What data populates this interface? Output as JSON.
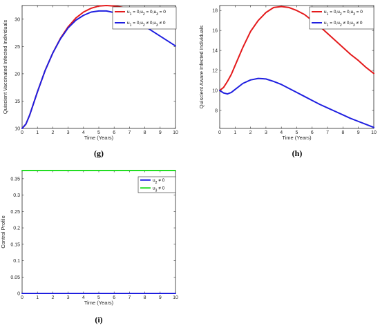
{
  "chart_data": [
    {
      "panel_label": "(g)",
      "type": "line",
      "xlabel": "Time (Years)",
      "ylabel": "Quiscient Vaccinated Infected Individuals",
      "xlim": [
        0,
        10
      ],
      "ylim": [
        10,
        32.5
      ],
      "xticks": [
        0,
        1,
        2,
        3,
        4,
        5,
        6,
        7,
        8,
        9,
        10
      ],
      "yticks": [
        10,
        15,
        20,
        25,
        30
      ],
      "legend_position": "top-right",
      "grid": false,
      "x": [
        0,
        0.25,
        0.5,
        0.75,
        1,
        1.5,
        2,
        2.5,
        3,
        3.5,
        4,
        4.5,
        5,
        5.5,
        6,
        6.5,
        7,
        7.5,
        8,
        8.5,
        9,
        9.5,
        10
      ],
      "series": [
        {
          "name": "u₁ = 0,u₂ = 0,u₃ = 0",
          "color": "#e41a1c",
          "values": [
            10,
            10.8,
            12.5,
            14.6,
            16.7,
            20.6,
            23.8,
            26.5,
            28.6,
            30.2,
            31.3,
            32.0,
            32.4,
            32.5,
            32.4,
            32.2,
            31.7,
            31.2,
            30.6,
            30.0,
            29.4,
            28.9,
            28.3
          ]
        },
        {
          "name": "u₁ = 0,u₂ ≠ 0,u₃ ≠ 0",
          "color": "#1f1fe0",
          "values": [
            10,
            10.8,
            12.5,
            14.6,
            16.7,
            20.6,
            23.8,
            26.4,
            28.4,
            29.8,
            30.7,
            31.3,
            31.5,
            31.5,
            31.2,
            30.8,
            30.2,
            29.5,
            28.7,
            27.8,
            26.9,
            26.0,
            25.1
          ]
        }
      ]
    },
    {
      "panel_label": "(h)",
      "type": "line",
      "xlabel": "Time (Years)",
      "ylabel": "Quiscient Aware Infected Individuals",
      "xlim": [
        0,
        10
      ],
      "ylim": [
        6.2,
        18.5
      ],
      "xticks": [
        0,
        1,
        2,
        3,
        4,
        5,
        6,
        7,
        8,
        9,
        10
      ],
      "yticks": [
        8,
        10,
        12,
        14,
        16,
        18
      ],
      "legend_position": "top-right",
      "grid": false,
      "x": [
        0,
        0.25,
        0.5,
        0.75,
        1,
        1.5,
        2,
        2.5,
        3,
        3.5,
        4,
        4.5,
        5,
        5.5,
        6,
        6.5,
        7,
        7.5,
        8,
        8.5,
        9,
        9.5,
        10
      ],
      "series": [
        {
          "name": "u₁ = 0,u₂ = 0,u₃ = 0",
          "color": "#e41a1c",
          "values": [
            10,
            10.3,
            10.9,
            11.6,
            12.5,
            14.3,
            15.9,
            17.0,
            17.8,
            18.3,
            18.4,
            18.3,
            18.0,
            17.6,
            17.0,
            16.4,
            15.7,
            15.0,
            14.3,
            13.6,
            13.0,
            12.3,
            11.7
          ]
        },
        {
          "name": "u₁ = 0,u₂ ≠ 0,u₃ ≠ 0",
          "color": "#1f1fe0",
          "values": [
            10,
            9.75,
            9.65,
            9.8,
            10.1,
            10.7,
            11.05,
            11.2,
            11.15,
            10.9,
            10.6,
            10.2,
            9.8,
            9.4,
            9.0,
            8.6,
            8.25,
            7.9,
            7.55,
            7.2,
            6.9,
            6.6,
            6.3
          ]
        }
      ]
    },
    {
      "panel_label": "(i)",
      "type": "line",
      "xlabel": "Time (Years)",
      "ylabel": "Control Profile",
      "xlim": [
        0,
        10
      ],
      "ylim": [
        0,
        0.375
      ],
      "xticks": [
        0,
        1,
        2,
        3,
        4,
        5,
        6,
        7,
        8,
        9,
        10
      ],
      "yticks": [
        0,
        0.05,
        0.1,
        0.15,
        0.2,
        0.25,
        0.3,
        0.35
      ],
      "ytick_labels": [
        "0",
        "0.05",
        "0.1",
        "0.15",
        "0.2",
        "0.25",
        "0.3",
        "0.35"
      ],
      "legend_position": "top-right",
      "grid": false,
      "x": [
        0,
        10
      ],
      "series": [
        {
          "name": "u₂ ≠ 0",
          "color": "#1f1fe0",
          "values": [
            0,
            0
          ]
        },
        {
          "name": "u₃ ≠ 0",
          "color": "#22dd22",
          "values": [
            0.375,
            0.375
          ]
        }
      ]
    }
  ]
}
